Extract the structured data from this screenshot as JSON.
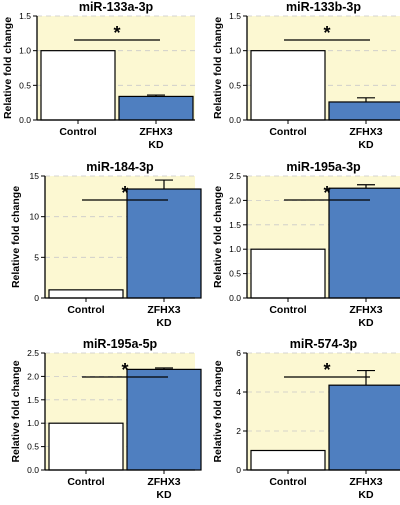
{
  "colors": {
    "plot_bg": "#fcf8d2",
    "control_bar": "#ffffff",
    "kd_bar": "#4f7fc0",
    "axis": "#000000",
    "grid": "#c9c9c9"
  },
  "chart_data": [
    {
      "type": "bar",
      "title": "miR-133a-3p",
      "ylabel": "Relative fold change",
      "categories": [
        "Control",
        "ZFHX3\nKD"
      ],
      "values": [
        1.0,
        0.34
      ],
      "errors": [
        0,
        0.02
      ],
      "ylim": [
        0,
        1.5
      ],
      "yticks": [
        0,
        0.5,
        1.0,
        1.5
      ],
      "ytick_labels": [
        "0.0",
        "0.5",
        "1.0",
        "1.5"
      ],
      "grid": true,
      "significance": "*"
    },
    {
      "type": "bar",
      "title": "miR-133b-3p",
      "ylabel": "Relative fold change",
      "categories": [
        "Control",
        "ZFHX3\nKD"
      ],
      "values": [
        1.0,
        0.26
      ],
      "errors": [
        0,
        0.06
      ],
      "ylim": [
        0,
        1.5
      ],
      "yticks": [
        0,
        0.5,
        1.0,
        1.5
      ],
      "ytick_labels": [
        "0.0",
        "0.5",
        "1.0",
        "1.5"
      ],
      "grid": true,
      "significance": "*"
    },
    {
      "type": "bar",
      "title": "miR-184-3p",
      "ylabel": "Relative fold change",
      "categories": [
        "Control",
        "ZFHX3\nKD"
      ],
      "values": [
        1.0,
        13.4
      ],
      "errors": [
        0,
        1.1
      ],
      "ylim": [
        0,
        15
      ],
      "yticks": [
        0,
        5,
        10,
        15
      ],
      "ytick_labels": [
        "0",
        "5",
        "10",
        "15"
      ],
      "grid": true,
      "significance": "*"
    },
    {
      "type": "bar",
      "title": "miR-195a-3p",
      "ylabel": "Relative fold change",
      "categories": [
        "Control",
        "ZFHX3\nKD"
      ],
      "values": [
        1.0,
        2.25
      ],
      "errors": [
        0,
        0.07
      ],
      "ylim": [
        0,
        2.5
      ],
      "yticks": [
        0,
        0.5,
        1.0,
        1.5,
        2.0,
        2.5
      ],
      "ytick_labels": [
        "0.0",
        "0.5",
        "1.0",
        "1.5",
        "2.0",
        "2.5"
      ],
      "grid": true,
      "significance": "*"
    },
    {
      "type": "bar",
      "title": "miR-195a-5p",
      "ylabel": "Relative fold change",
      "categories": [
        "Control",
        "ZFHX3\nKD"
      ],
      "values": [
        1.0,
        2.15
      ],
      "errors": [
        0,
        0.03
      ],
      "ylim": [
        0,
        2.5
      ],
      "yticks": [
        0,
        0.5,
        1.0,
        1.5,
        2.0,
        2.5
      ],
      "ytick_labels": [
        "0.0",
        "0.5",
        "1.0",
        "1.5",
        "2.0",
        "2.5"
      ],
      "grid": true,
      "significance": "*"
    },
    {
      "type": "bar",
      "title": "miR-574-3p",
      "ylabel": "Relative fold change",
      "categories": [
        "Control",
        "ZFHX3\nKD"
      ],
      "values": [
        1.0,
        4.35
      ],
      "errors": [
        0,
        0.75
      ],
      "ylim": [
        0,
        6
      ],
      "yticks": [
        0,
        2,
        4,
        6
      ],
      "ytick_labels": [
        "0",
        "2",
        "4",
        "6"
      ],
      "grid": true,
      "significance": "*"
    }
  ]
}
